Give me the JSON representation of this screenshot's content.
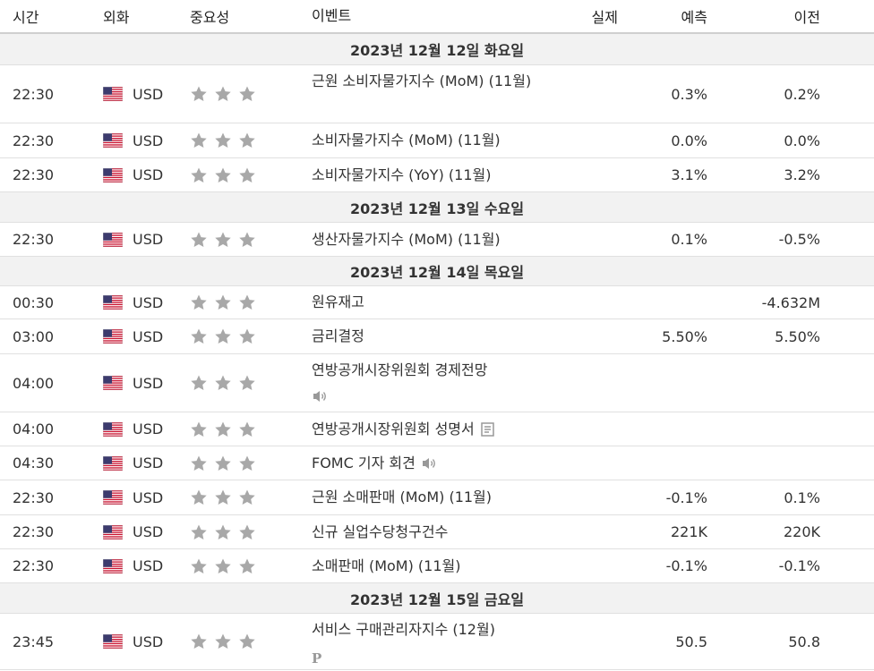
{
  "header": {
    "columns": [
      "시간",
      "외화",
      "중요성",
      "이벤트",
      "실제",
      "예측",
      "이전"
    ]
  },
  "sections": [
    {
      "date": "2023년 12월 12일 화요일",
      "rows": [
        {
          "time": "22:30",
          "currency": "USD",
          "event": "근원 소비자물가지수 (MoM) (11월)",
          "forecast": "0.3%",
          "previous": "0.2%"
        },
        {
          "time": "22:30",
          "currency": "USD",
          "event": "소비자물가지수 (MoM) (11월)",
          "forecast": "0.0%",
          "previous": "0.0%"
        },
        {
          "time": "22:30",
          "currency": "USD",
          "event": "소비자물가지수 (YoY) (11월)",
          "forecast": "3.1%",
          "previous": "3.2%"
        }
      ]
    },
    {
      "date": "2023년 12월 13일 수요일",
      "rows": [
        {
          "time": "22:30",
          "currency": "USD",
          "event": "생산자물가지수 (MoM) (11월)",
          "forecast": "0.1%",
          "previous": "-0.5%"
        }
      ]
    },
    {
      "date": "2023년 12월 14일 목요일",
      "rows": [
        {
          "time": "00:30",
          "currency": "USD",
          "event": "원유재고",
          "previous": "-4.632M"
        },
        {
          "time": "03:00",
          "currency": "USD",
          "event": "금리결정",
          "forecast": "5.50%",
          "previous": "5.50%"
        },
        {
          "time": "04:00",
          "currency": "USD",
          "event": "연방공개시장위원회 경제전망"
        },
        {
          "time": "04:00",
          "currency": "USD",
          "event": "연방공개시장위원회 성명서"
        },
        {
          "time": "04:30",
          "currency": "USD",
          "event": "FOMC 기자 회견"
        },
        {
          "time": "22:30",
          "currency": "USD",
          "event": "근원 소매판매 (MoM) (11월)",
          "forecast": "-0.1%",
          "previous": "0.1%"
        },
        {
          "time": "22:30",
          "currency": "USD",
          "event": "신규 실업수당청구건수",
          "forecast": "221K",
          "previous": "220K"
        },
        {
          "time": "22:30",
          "currency": "USD",
          "event": "소매판매 (MoM) (11월)",
          "forecast": "-0.1%",
          "previous": "-0.1%"
        }
      ]
    },
    {
      "date": "2023년 12월 15일 금요일",
      "rows": [
        {
          "time": "23:45",
          "currency": "USD",
          "event": "서비스 구매관리자지수 (12월)",
          "mark": "P",
          "forecast": "50.5",
          "previous": "50.8"
        }
      ]
    }
  ]
}
